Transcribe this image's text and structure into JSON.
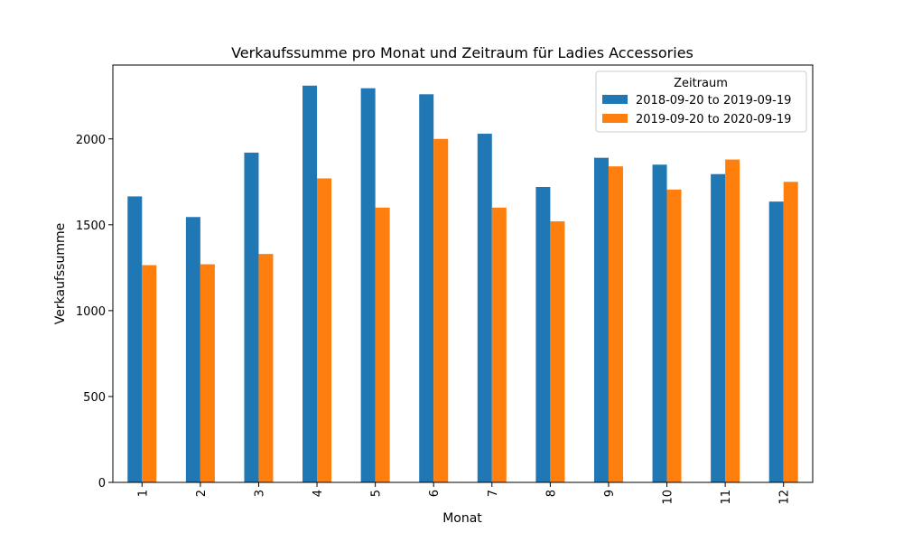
{
  "chart_data": {
    "type": "bar",
    "title": "Verkaufssumme pro Monat und Zeitraum für Ladies Accessories",
    "xlabel": "Monat",
    "ylabel": "Verkaufssumme",
    "categories": [
      "1",
      "2",
      "3",
      "4",
      "5",
      "6",
      "7",
      "8",
      "9",
      "10",
      "11",
      "12"
    ],
    "series": [
      {
        "name": "2018-09-20 to 2019-09-19",
        "color": "#1f77b4",
        "values": [
          1665,
          1545,
          1920,
          2310,
          2295,
          2260,
          2030,
          1720,
          1890,
          1850,
          1795,
          1635
        ]
      },
      {
        "name": "2019-09-20 to 2020-09-19",
        "color": "#ff7f0e",
        "values": [
          1265,
          1270,
          1330,
          1770,
          1600,
          2000,
          1600,
          1520,
          1840,
          1705,
          1880,
          1750
        ]
      }
    ],
    "ylim": [
      0,
      2430
    ],
    "yticks": [
      0,
      500,
      1000,
      1500,
      2000
    ],
    "legend": {
      "title": "Zeitraum",
      "placement": "top-right"
    },
    "grid": false
  }
}
